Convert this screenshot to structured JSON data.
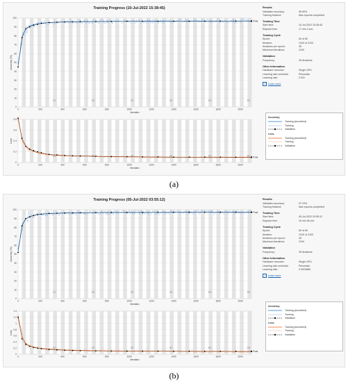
{
  "panels": [
    {
      "id": "a",
      "title": "Training Progress (10-Jul-2022 15:38:45)",
      "caption": "(a)",
      "final_label": "Final",
      "xlabel": "Iteration",
      "acc_ylabel": "Accuracy (%)",
      "loss_ylabel": "Loss",
      "acc_yticks": [
        "100",
        "90",
        "80",
        "70",
        "60",
        "50",
        "40",
        "30",
        "20",
        "10",
        "0"
      ],
      "loss_yticks": [
        "0.8",
        "0.6",
        "0.4",
        "0.2",
        "0"
      ],
      "xticks": [
        "0",
        "200",
        "400",
        "600",
        "800",
        "1000",
        "1200",
        "1400",
        "1600",
        "1800",
        "2000"
      ],
      "epoch_labels": [
        "10",
        "20",
        "30",
        "40",
        "50",
        "60"
      ],
      "results": {
        "heading": "Results",
        "rows": [
          {
            "k": "Validation accuracy:",
            "v": "96.59%"
          },
          {
            "k": "Training finished:",
            "v": "Max epochs completed"
          }
        ]
      },
      "training_time": {
        "heading": "Training Time",
        "rows": [
          {
            "k": "Start time:",
            "v": "10-Jul-2022 15:38:45"
          },
          {
            "k": "Elapsed time:",
            "v": "17 min 4 sec"
          }
        ]
      },
      "training_cycle": {
        "heading": "Training Cycle",
        "rows": [
          {
            "k": "Epoch:",
            "v": "60 of 60"
          },
          {
            "k": "Iteration:",
            "v": "2100 of 2100"
          },
          {
            "k": "Iterations per epoch:",
            "v": "35"
          },
          {
            "k": "Maximum iterations:",
            "v": "2100"
          }
        ]
      },
      "validation": {
        "heading": "Validation",
        "rows": [
          {
            "k": "Frequency:",
            "v": "35 iterations"
          }
        ]
      },
      "other": {
        "heading": "Other Information",
        "rows": [
          {
            "k": "Hardware resource:",
            "v": "Single GPU"
          },
          {
            "k": "Learning rate schedule:",
            "v": "Piecewise"
          },
          {
            "k": "Learning rate:",
            "v": "0.001"
          }
        ]
      },
      "learn_more": "Learn more",
      "legend": {
        "acc_heading": "Accuracy",
        "loss_heading": "Loss",
        "smoothed": "Training (smoothed)",
        "training": "Training",
        "validation": "Validation"
      }
    },
    {
      "id": "b",
      "title": "Training Progress (05-Jul-2022 03:55:12)",
      "caption": "(b)",
      "final_label": "Final",
      "xlabel": "Iteration",
      "acc_ylabel": "Accuracy (%)",
      "loss_ylabel": "Loss",
      "acc_yticks": [
        "100",
        "90",
        "80",
        "70",
        "60",
        "50",
        "40",
        "30",
        "20",
        "10",
        "0"
      ],
      "loss_yticks": [
        "1.4",
        "1.2",
        "1",
        "0.8",
        "0.6",
        "0.4",
        "0.2",
        "0"
      ],
      "xticks": [
        "0",
        "200",
        "400",
        "600",
        "800",
        "1000",
        "1200",
        "1400",
        "1600",
        "1800",
        "2000"
      ],
      "epoch_labels": [
        "10",
        "20",
        "30",
        "40",
        "50",
        "60"
      ],
      "results": {
        "heading": "Results",
        "rows": [
          {
            "k": "Validation accuracy:",
            "v": "97.23%"
          },
          {
            "k": "Training finished:",
            "v": "Max epochs completed"
          }
        ]
      },
      "training_time": {
        "heading": "Training Time",
        "rows": [
          {
            "k": "Start time:",
            "v": "05-Jul-2022 03:55:12"
          },
          {
            "k": "Elapsed time:",
            "v": "16 min 56 sec"
          }
        ]
      },
      "training_cycle": {
        "heading": "Training Cycle",
        "rows": [
          {
            "k": "Epoch:",
            "v": "60 of 60"
          },
          {
            "k": "Iteration:",
            "v": "2100 of 2100"
          },
          {
            "k": "Iterations per epoch:",
            "v": "35"
          },
          {
            "k": "Maximum iterations:",
            "v": "2100"
          }
        ]
      },
      "validation": {
        "heading": "Validation",
        "rows": [
          {
            "k": "Frequency:",
            "v": "35 iterations"
          }
        ]
      },
      "other": {
        "heading": "Other Information",
        "rows": [
          {
            "k": "Hardware resource:",
            "v": "Single GPU"
          },
          {
            "k": "Learning rate schedule:",
            "v": "Piecewise"
          },
          {
            "k": "Learning rate:",
            "v": "0.0024865"
          }
        ]
      },
      "learn_more": "Learn more",
      "legend": {
        "acc_heading": "Accuracy",
        "loss_heading": "Loss",
        "smoothed": "Training (smoothed)",
        "training": "Training",
        "validation": "Validation"
      }
    }
  ],
  "colors": {
    "acc_smoothed": "#1f77d4",
    "acc_training": "#86b8e8",
    "loss_smoothed": "#e8601c",
    "loss_training": "#f4b183",
    "validation": "#000000",
    "epoch_band": "#e4e4e4"
  },
  "chart_data": [
    {
      "type": "line",
      "panel": "a",
      "xlabel": "Iteration",
      "ylabel": "Accuracy (%)",
      "xlim": [
        0,
        2100
      ],
      "ylim": [
        0,
        100
      ],
      "series": [
        {
          "name": "Training (smoothed)",
          "x": [
            0,
            20,
            40,
            70,
            100,
            150,
            200,
            300,
            400,
            600,
            800,
            1000,
            1200,
            1400,
            1600,
            1800,
            2000,
            2100
          ],
          "values": [
            48,
            62,
            80,
            88,
            91,
            93,
            94,
            95,
            95.5,
            96,
            96.2,
            96.4,
            96.5,
            96.5,
            96.6,
            96.6,
            96.7,
            96.7
          ]
        },
        {
          "name": "Validation",
          "x": [
            0,
            35,
            70,
            105,
            140,
            175,
            210,
            280,
            350,
            420,
            490,
            560,
            700,
            840,
            980,
            1120,
            1260,
            1400,
            1540,
            1680,
            1820,
            1960,
            2100
          ],
          "values": [
            45,
            78,
            88,
            90,
            92,
            93,
            94,
            95,
            95.3,
            95.5,
            95.8,
            96,
            96.1,
            96.2,
            96.3,
            96.4,
            96.4,
            96.5,
            96.5,
            96.5,
            96.6,
            96.6,
            96.6
          ]
        }
      ]
    },
    {
      "type": "line",
      "panel": "a",
      "xlabel": "Iteration",
      "ylabel": "Loss",
      "xlim": [
        0,
        2100
      ],
      "ylim": [
        0,
        0.8
      ],
      "series": [
        {
          "name": "Training (smoothed)",
          "x": [
            0,
            20,
            40,
            70,
            100,
            150,
            200,
            300,
            400,
            600,
            800,
            1000,
            1200,
            1400,
            1600,
            1800,
            2000,
            2100
          ],
          "values": [
            0.85,
            0.6,
            0.4,
            0.3,
            0.24,
            0.2,
            0.17,
            0.14,
            0.13,
            0.12,
            0.11,
            0.105,
            0.1,
            0.1,
            0.098,
            0.096,
            0.095,
            0.095
          ]
        },
        {
          "name": "Validation",
          "x": [
            0,
            35,
            70,
            105,
            140,
            175,
            210,
            280,
            350,
            420,
            490,
            560,
            700,
            840,
            980,
            1120,
            1260,
            1400,
            1540,
            1680,
            1820,
            1960,
            2100
          ],
          "values": [
            0.82,
            0.45,
            0.3,
            0.25,
            0.22,
            0.2,
            0.18,
            0.15,
            0.14,
            0.13,
            0.125,
            0.12,
            0.115,
            0.11,
            0.108,
            0.105,
            0.103,
            0.1,
            0.1,
            0.1,
            0.099,
            0.098,
            0.098
          ]
        }
      ]
    },
    {
      "type": "line",
      "panel": "b",
      "xlabel": "Iteration",
      "ylabel": "Accuracy (%)",
      "xlim": [
        0,
        2100
      ],
      "ylim": [
        0,
        100
      ],
      "series": [
        {
          "name": "Training (smoothed)",
          "x": [
            0,
            20,
            40,
            70,
            100,
            150,
            200,
            300,
            400,
            600,
            800,
            1000,
            1200,
            1400,
            1600,
            1800,
            2000,
            2100
          ],
          "values": [
            55,
            68,
            84,
            90,
            92,
            94,
            95,
            95.8,
            96.2,
            96.6,
            96.8,
            97,
            97,
            97.1,
            97.2,
            97.2,
            97.3,
            97.3
          ]
        },
        {
          "name": "Validation",
          "x": [
            0,
            35,
            70,
            105,
            140,
            175,
            210,
            280,
            350,
            420,
            490,
            560,
            700,
            840,
            980,
            1120,
            1260,
            1400,
            1540,
            1680,
            1820,
            1960,
            2100
          ],
          "values": [
            52,
            82,
            90,
            92,
            93.5,
            94.5,
            95,
            95.8,
            96,
            96.3,
            96.5,
            96.7,
            96.8,
            96.9,
            97,
            97,
            97.1,
            97.1,
            97.2,
            97.2,
            97.2,
            97.2,
            97.2
          ]
        }
      ]
    },
    {
      "type": "line",
      "panel": "b",
      "xlabel": "Iteration",
      "ylabel": "Loss",
      "xlim": [
        0,
        2100
      ],
      "ylim": [
        0,
        1.4
      ],
      "series": [
        {
          "name": "Training (smoothed)",
          "x": [
            0,
            20,
            40,
            70,
            100,
            150,
            200,
            300,
            400,
            600,
            800,
            1000,
            1200,
            1400,
            1600,
            1800,
            2000,
            2100
          ],
          "values": [
            1.25,
            0.9,
            0.55,
            0.35,
            0.28,
            0.22,
            0.19,
            0.16,
            0.14,
            0.12,
            0.11,
            0.1,
            0.1,
            0.095,
            0.09,
            0.09,
            0.088,
            0.088
          ]
        },
        {
          "name": "Validation",
          "x": [
            0,
            35,
            70,
            105,
            140,
            175,
            210,
            280,
            350,
            420,
            490,
            560,
            700,
            840,
            980,
            1120,
            1260,
            1400,
            1540,
            1680,
            1820,
            1960,
            2100
          ],
          "values": [
            1.2,
            0.5,
            0.32,
            0.26,
            0.22,
            0.2,
            0.18,
            0.15,
            0.14,
            0.13,
            0.12,
            0.115,
            0.11,
            0.105,
            0.1,
            0.1,
            0.098,
            0.096,
            0.095,
            0.094,
            0.093,
            0.092,
            0.092
          ]
        }
      ]
    }
  ]
}
